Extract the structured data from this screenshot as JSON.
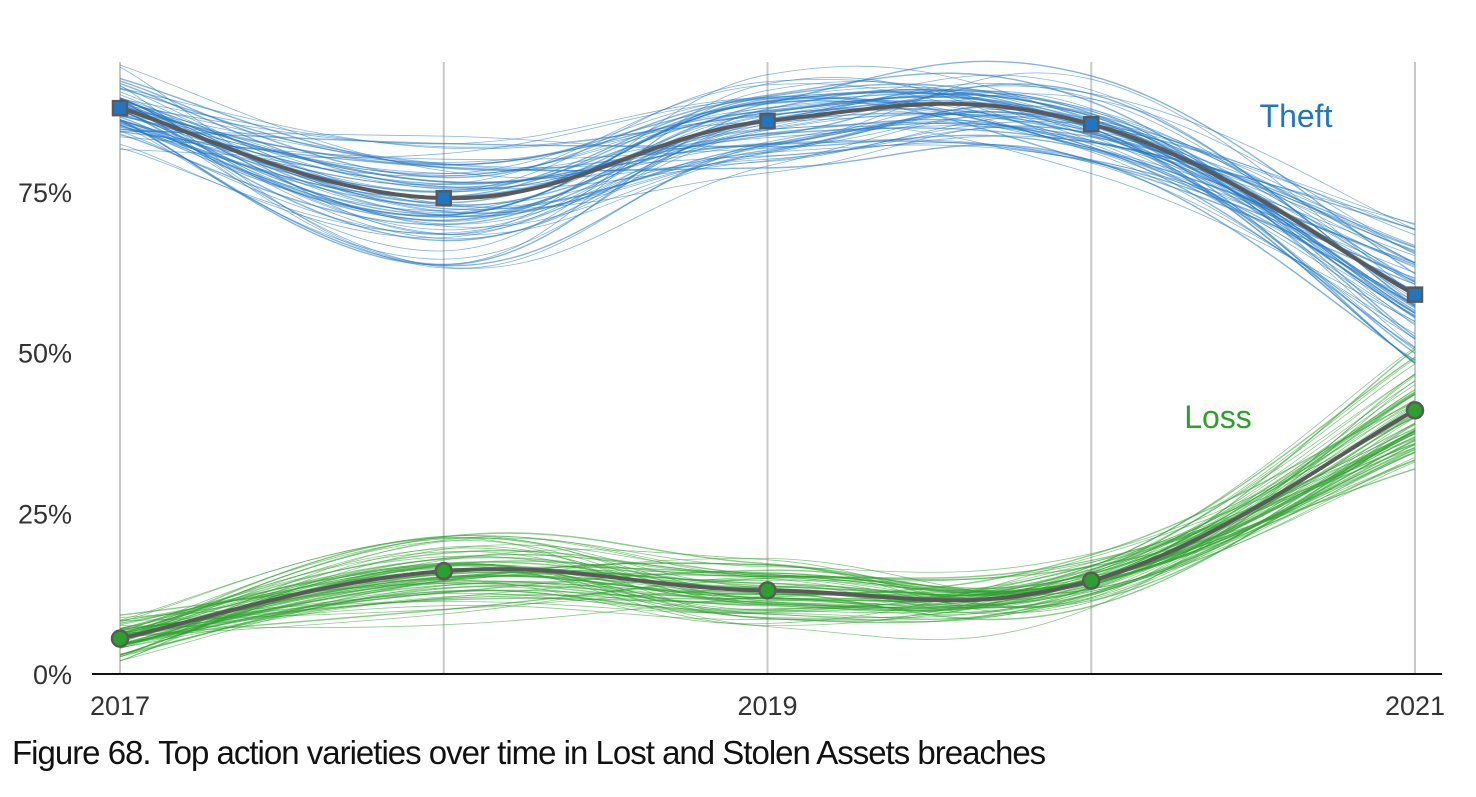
{
  "chart_data": {
    "type": "line",
    "title": "Figure 68. Top action varieties over time in Lost and Stolen Assets breaches",
    "x": [
      2017,
      2018,
      2019,
      2020,
      2021
    ],
    "x_tick_labels": [
      "2017",
      "2019",
      "2021"
    ],
    "y_tick_labels": [
      "0%",
      "25%",
      "50%",
      "75%"
    ],
    "ylim": [
      0,
      95
    ],
    "grid": "vertical lines at each year",
    "series": [
      {
        "name": "Theft",
        "values": [
          88,
          74,
          86,
          85.5,
          59
        ],
        "color": "#1f77c4",
        "marker": "square"
      },
      {
        "name": "Loss",
        "values": [
          5.5,
          16,
          13,
          14.5,
          41
        ],
        "color": "#2ca02c",
        "marker": "circle"
      }
    ],
    "uncertainty": "many thin simulated trajectories (draws) around each series median",
    "median_line_color": "#5a5a5a",
    "gridline_color": "#c8c8c8"
  }
}
